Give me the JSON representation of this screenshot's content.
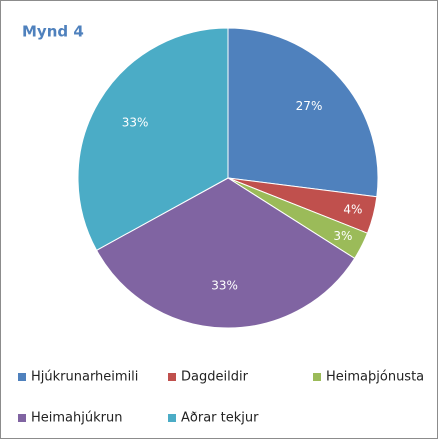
{
  "chart_data": {
    "type": "pie",
    "title": "Mynd 4",
    "categories": [
      "Hjúkrunarheimili",
      "Dagdeildir",
      "Heimaþjónusta",
      "Heimahjúkrun",
      "Aðrar tekjur"
    ],
    "values": [
      27,
      4,
      3,
      33,
      33
    ],
    "value_labels": [
      "27%",
      "4%",
      "3%",
      "33%",
      "33%"
    ],
    "colors": [
      "#4f81bd",
      "#c0504d",
      "#9bbb59",
      "#8064a2",
      "#4bacc6"
    ],
    "legend": "bottom"
  }
}
